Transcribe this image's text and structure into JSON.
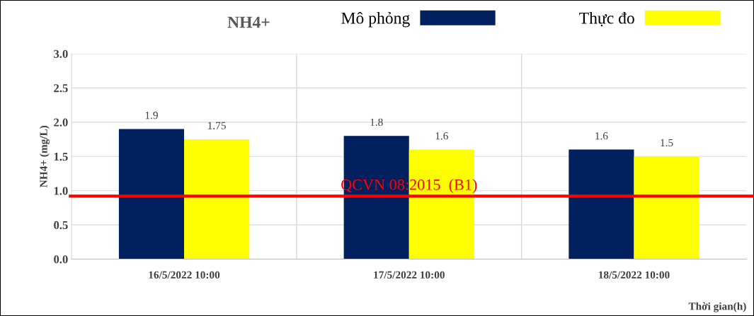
{
  "chart_data": {
    "type": "bar",
    "title": "NH4+",
    "xlabel": "Thời gian(h)",
    "ylabel": "NH4+ (mg/L)",
    "categories": [
      "16/5/2022 10:00",
      "17/5/2022 10:00",
      "18/5/2022 10:00"
    ],
    "series": [
      {
        "name": "Mô phỏng",
        "color": "#002060",
        "values": [
          1.9,
          1.8,
          1.6
        ]
      },
      {
        "name": "Thực đo",
        "color": "#ffff00",
        "values": [
          1.75,
          1.6,
          1.5
        ]
      }
    ],
    "ylim": [
      0,
      3
    ],
    "yticks": [
      {
        "value": 0,
        "label": "0.0"
      },
      {
        "value": 0.5,
        "label": "0.5"
      },
      {
        "value": 1,
        "label": "1.0"
      },
      {
        "value": 1.5,
        "label": "1.5"
      },
      {
        "value": 2,
        "label": "2.0"
      },
      {
        "value": 2.5,
        "label": "2.5"
      },
      {
        "value": 3,
        "label": "3.0"
      }
    ],
    "ref_lines": [
      {
        "axis": "y",
        "value": 0.92,
        "label": "QCVN 08:2015  (B1)",
        "color": "#ff0000"
      }
    ],
    "data_labels": true,
    "grid": true,
    "legend": "top"
  }
}
